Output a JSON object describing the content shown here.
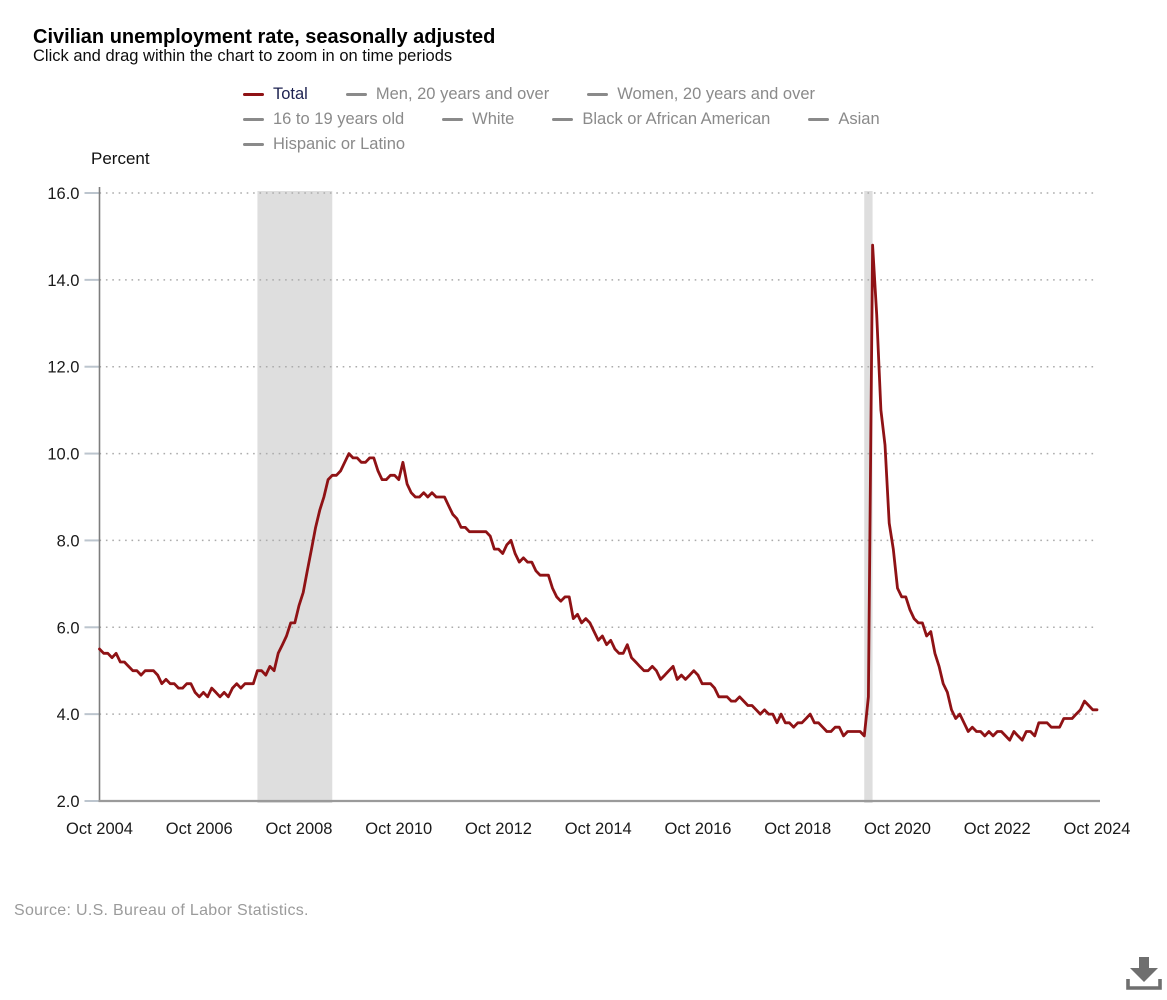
{
  "header": {
    "title": "Civilian unemployment rate, seasonally adjusted",
    "subtitle": "Click and drag within the chart to zoom in on time periods"
  },
  "legend": {
    "inactive_color": "#8a8a8a",
    "active_label_color": "#1c2150",
    "items": [
      {
        "label": "Total",
        "active": true,
        "dash_color": "#8f1215"
      },
      {
        "label": "Men, 20 years and over",
        "active": false
      },
      {
        "label": "Women, 20 years and over",
        "active": false
      },
      {
        "label": "16 to 19 years old",
        "active": false
      },
      {
        "label": "White",
        "active": false
      },
      {
        "label": "Black or African American",
        "active": false
      },
      {
        "label": "Asian",
        "active": false
      },
      {
        "label": "Hispanic or Latino",
        "active": false
      }
    ]
  },
  "chart_data": {
    "type": "line",
    "title": "Civilian unemployment rate, seasonally adjusted",
    "ylabel": "Percent",
    "ylim": [
      2.0,
      16.0
    ],
    "y_ticks": [
      2.0,
      4.0,
      6.0,
      8.0,
      10.0,
      12.0,
      14.0,
      16.0
    ],
    "grid": "dotted",
    "frequency": "monthly",
    "x_range": [
      "Oct 2004",
      "Oct 2024"
    ],
    "x_tick_interval_months": 24,
    "x_tick_labels": [
      "Oct 2004",
      "Oct 2006",
      "Oct 2008",
      "Oct 2010",
      "Oct 2012",
      "Oct 2014",
      "Oct 2016",
      "Oct 2018",
      "Oct 2020",
      "Oct 2022",
      "Oct 2024"
    ],
    "band_color": "#dedede",
    "recession_bands_month_index": [
      [
        38,
        56
      ],
      [
        184,
        186
      ]
    ],
    "series": [
      {
        "name": "Total",
        "color": "#8f1215",
        "values": [
          5.5,
          5.4,
          5.4,
          5.3,
          5.4,
          5.2,
          5.2,
          5.1,
          5.0,
          5.0,
          4.9,
          5.0,
          5.0,
          5.0,
          4.9,
          4.7,
          4.8,
          4.7,
          4.7,
          4.6,
          4.6,
          4.7,
          4.7,
          4.5,
          4.4,
          4.5,
          4.4,
          4.6,
          4.5,
          4.4,
          4.5,
          4.4,
          4.6,
          4.7,
          4.6,
          4.7,
          4.7,
          4.7,
          5.0,
          5.0,
          4.9,
          5.1,
          5.0,
          5.4,
          5.6,
          5.8,
          6.1,
          6.1,
          6.5,
          6.8,
          7.3,
          7.8,
          8.3,
          8.7,
          9.0,
          9.4,
          9.5,
          9.5,
          9.6,
          9.8,
          10.0,
          9.9,
          9.9,
          9.8,
          9.8,
          9.9,
          9.9,
          9.6,
          9.4,
          9.4,
          9.5,
          9.5,
          9.4,
          9.8,
          9.3,
          9.1,
          9.0,
          9.0,
          9.1,
          9.0,
          9.1,
          9.0,
          9.0,
          9.0,
          8.8,
          8.6,
          8.5,
          8.3,
          8.3,
          8.2,
          8.2,
          8.2,
          8.2,
          8.2,
          8.1,
          7.8,
          7.8,
          7.7,
          7.9,
          8.0,
          7.7,
          7.5,
          7.6,
          7.5,
          7.5,
          7.3,
          7.2,
          7.2,
          7.2,
          6.9,
          6.7,
          6.6,
          6.7,
          6.7,
          6.2,
          6.3,
          6.1,
          6.2,
          6.1,
          5.9,
          5.7,
          5.8,
          5.6,
          5.7,
          5.5,
          5.4,
          5.4,
          5.6,
          5.3,
          5.2,
          5.1,
          5.0,
          5.0,
          5.1,
          5.0,
          4.8,
          4.9,
          5.0,
          5.1,
          4.8,
          4.9,
          4.8,
          4.9,
          5.0,
          4.9,
          4.7,
          4.7,
          4.7,
          4.6,
          4.4,
          4.4,
          4.4,
          4.3,
          4.3,
          4.4,
          4.3,
          4.2,
          4.2,
          4.1,
          4.0,
          4.1,
          4.0,
          4.0,
          3.8,
          4.0,
          3.8,
          3.8,
          3.7,
          3.8,
          3.8,
          3.9,
          4.0,
          3.8,
          3.8,
          3.7,
          3.6,
          3.6,
          3.7,
          3.7,
          3.5,
          3.6,
          3.6,
          3.6,
          3.6,
          3.5,
          4.4,
          14.8,
          13.2,
          11.0,
          10.2,
          8.4,
          7.8,
          6.9,
          6.7,
          6.7,
          6.4,
          6.2,
          6.1,
          6.1,
          5.8,
          5.9,
          5.4,
          5.1,
          4.7,
          4.5,
          4.1,
          3.9,
          4.0,
          3.8,
          3.6,
          3.7,
          3.6,
          3.6,
          3.5,
          3.6,
          3.5,
          3.6,
          3.6,
          3.5,
          3.4,
          3.6,
          3.5,
          3.4,
          3.6,
          3.6,
          3.5,
          3.8,
          3.8,
          3.8,
          3.7,
          3.7,
          3.7,
          3.9,
          3.9,
          3.9,
          4.0,
          4.1,
          4.3,
          4.2,
          4.1,
          4.1
        ]
      }
    ]
  },
  "footer": {
    "source": "Source: U.S. Bureau of Labor Statistics."
  }
}
